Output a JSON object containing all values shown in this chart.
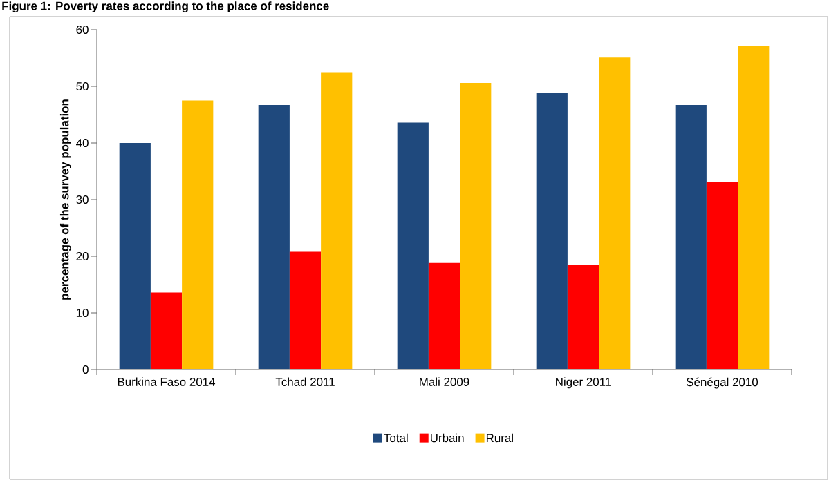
{
  "chart_data": {
    "type": "bar",
    "title": "Figure 1: Poverty rates according to the place of residence",
    "ylabel": "percentage of the survey population",
    "categories": [
      "Burkina Faso 2014",
      "Tchad 2011",
      "Mali 2009",
      "Niger 2011",
      "Sénégal 2010"
    ],
    "series": [
      {
        "name": "Total",
        "color": "#1f497d",
        "values": [
          40.0,
          46.7,
          43.6,
          48.9,
          46.7
        ]
      },
      {
        "name": "Urbain",
        "color": "#ff0000",
        "values": [
          13.6,
          20.8,
          18.8,
          18.5,
          33.1
        ]
      },
      {
        "name": "Rural",
        "color": "#ffc000",
        "values": [
          47.5,
          52.5,
          50.6,
          55.1,
          57.1
        ]
      }
    ],
    "ylim": [
      0,
      60
    ],
    "yticks": [
      0,
      10,
      20,
      30,
      40,
      50,
      60
    ],
    "grid": false,
    "legend": "bottom"
  }
}
